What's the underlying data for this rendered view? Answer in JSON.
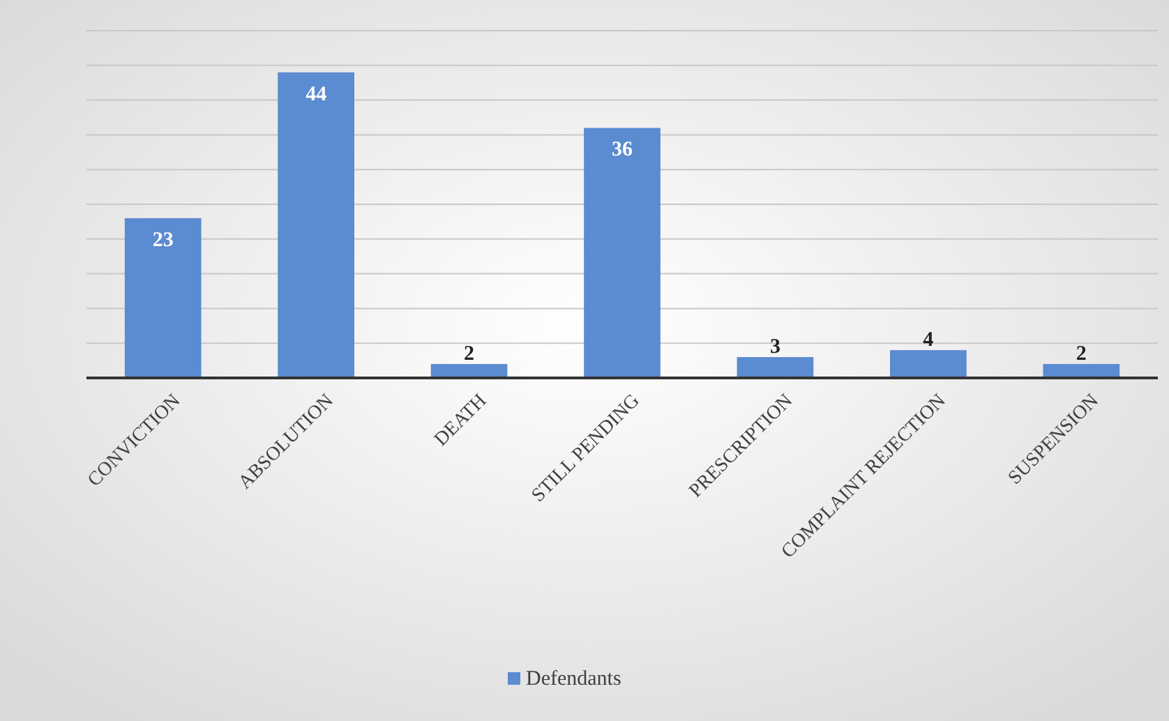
{
  "chart_data": {
    "type": "bar",
    "categories": [
      "CONVICTION",
      "ABSOLUTION",
      "DEATH",
      "STILL PENDING",
      "PRESCRIPTION",
      "COMPLAINT REJECTION",
      "SUSPENSION"
    ],
    "series": [
      {
        "name": "Defendants",
        "color": "#5b8bd0",
        "values": [
          23,
          44,
          2,
          36,
          3,
          4,
          2
        ]
      }
    ],
    "ylim": [
      0,
      50
    ],
    "yticks": [
      {
        "value": 0,
        "label": null
      },
      {
        "value": 5,
        "label": null
      },
      {
        "value": 10,
        "label": null
      },
      {
        "value": 15,
        "label": null
      },
      {
        "value": 20,
        "label": null
      },
      {
        "value": 25,
        "label": null
      },
      {
        "value": 30,
        "label": null
      },
      {
        "value": 35,
        "label": null
      },
      {
        "value": 40,
        "label": null
      },
      {
        "value": 45,
        "label": null
      },
      {
        "value": 50,
        "label": null
      }
    ],
    "tick_labels": "x",
    "grid": "y",
    "legend": "bottom",
    "data_labels": true
  }
}
